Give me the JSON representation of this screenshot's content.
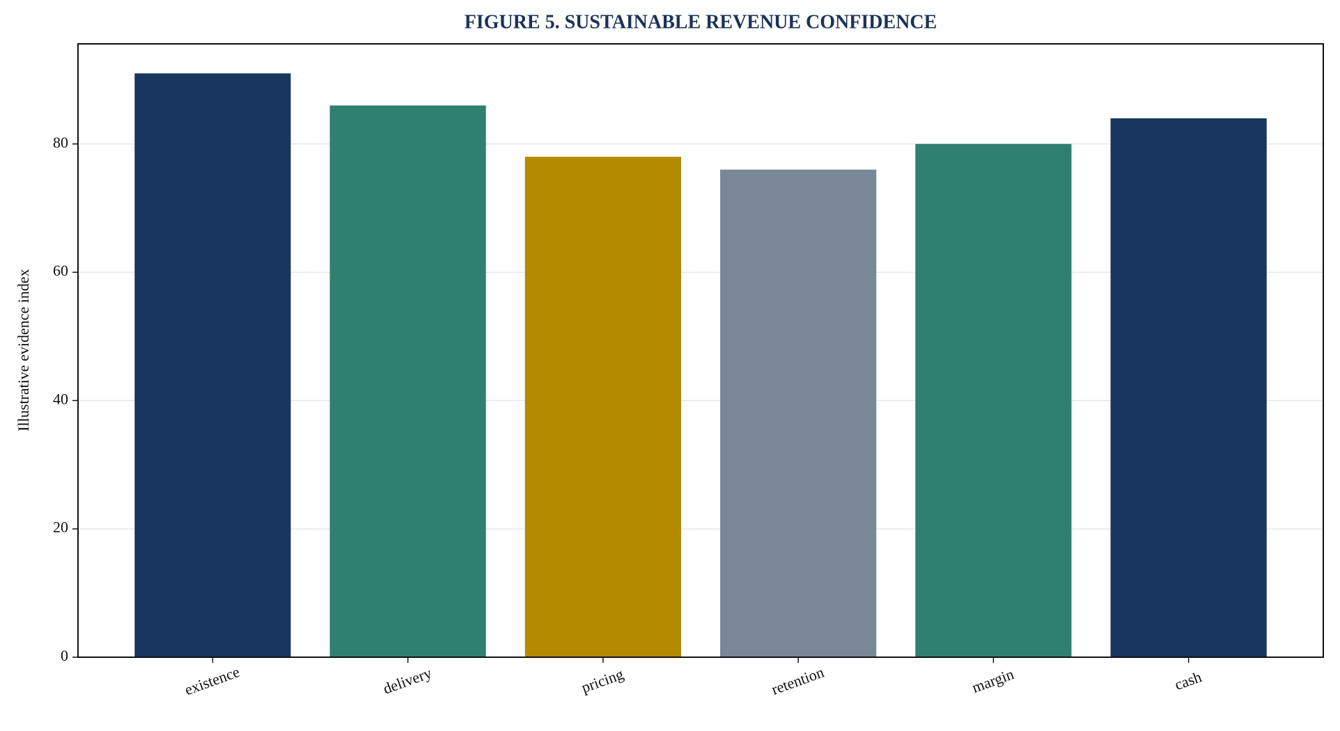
{
  "chart_data": {
    "type": "bar",
    "title": "FIGURE 5. SUSTAINABLE REVENUE CONFIDENCE",
    "y_label": "Illustrative evidence index",
    "categories": [
      "existence",
      "delivery",
      "pricing",
      "retention",
      "margin",
      "cash"
    ],
    "values": [
      91,
      86,
      78,
      76,
      80,
      84
    ],
    "colors": [
      "#19375e",
      "#2f8070",
      "#b38a00",
      "#7a8796",
      "#2f8070",
      "#19375e"
    ],
    "ylim": [
      0,
      95.6
    ],
    "yticks": [
      0,
      20,
      40,
      60,
      80
    ],
    "grid": true
  }
}
